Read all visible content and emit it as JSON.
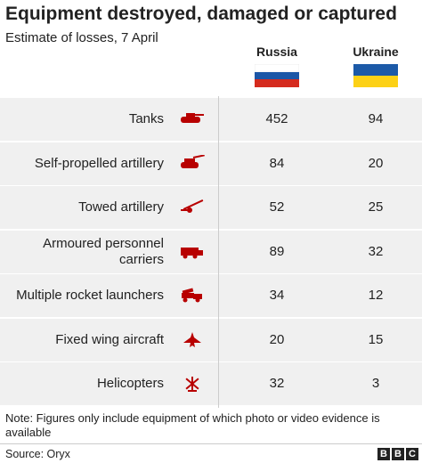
{
  "header": {
    "title": "Equipment destroyed, damaged or captured",
    "subtitle": "Estimate of losses, 7 April"
  },
  "table": {
    "columns": [
      "Russia",
      "Ukraine"
    ],
    "rows": [
      {
        "label": [
          "Tanks"
        ],
        "values": [
          452,
          94
        ]
      },
      {
        "label": [
          "Self-propelled artillery"
        ],
        "values": [
          84,
          20
        ]
      },
      {
        "label": [
          "Towed artillery"
        ],
        "values": [
          52,
          25
        ]
      },
      {
        "label": [
          "Armoured personnel",
          "carriers"
        ],
        "values": [
          89,
          32
        ]
      },
      {
        "label": [
          "Multiple rocket launchers"
        ],
        "values": [
          34,
          12
        ]
      },
      {
        "label": [
          "Fixed wing aircraft"
        ],
        "values": [
          20,
          15
        ]
      },
      {
        "label": [
          "Helicopters"
        ],
        "values": [
          32,
          3
        ]
      }
    ]
  },
  "note": "Note: Figures only include equipment of which photo or video evidence is available",
  "source": "Source: Oryx",
  "logo": [
    "B",
    "B",
    "C"
  ]
}
